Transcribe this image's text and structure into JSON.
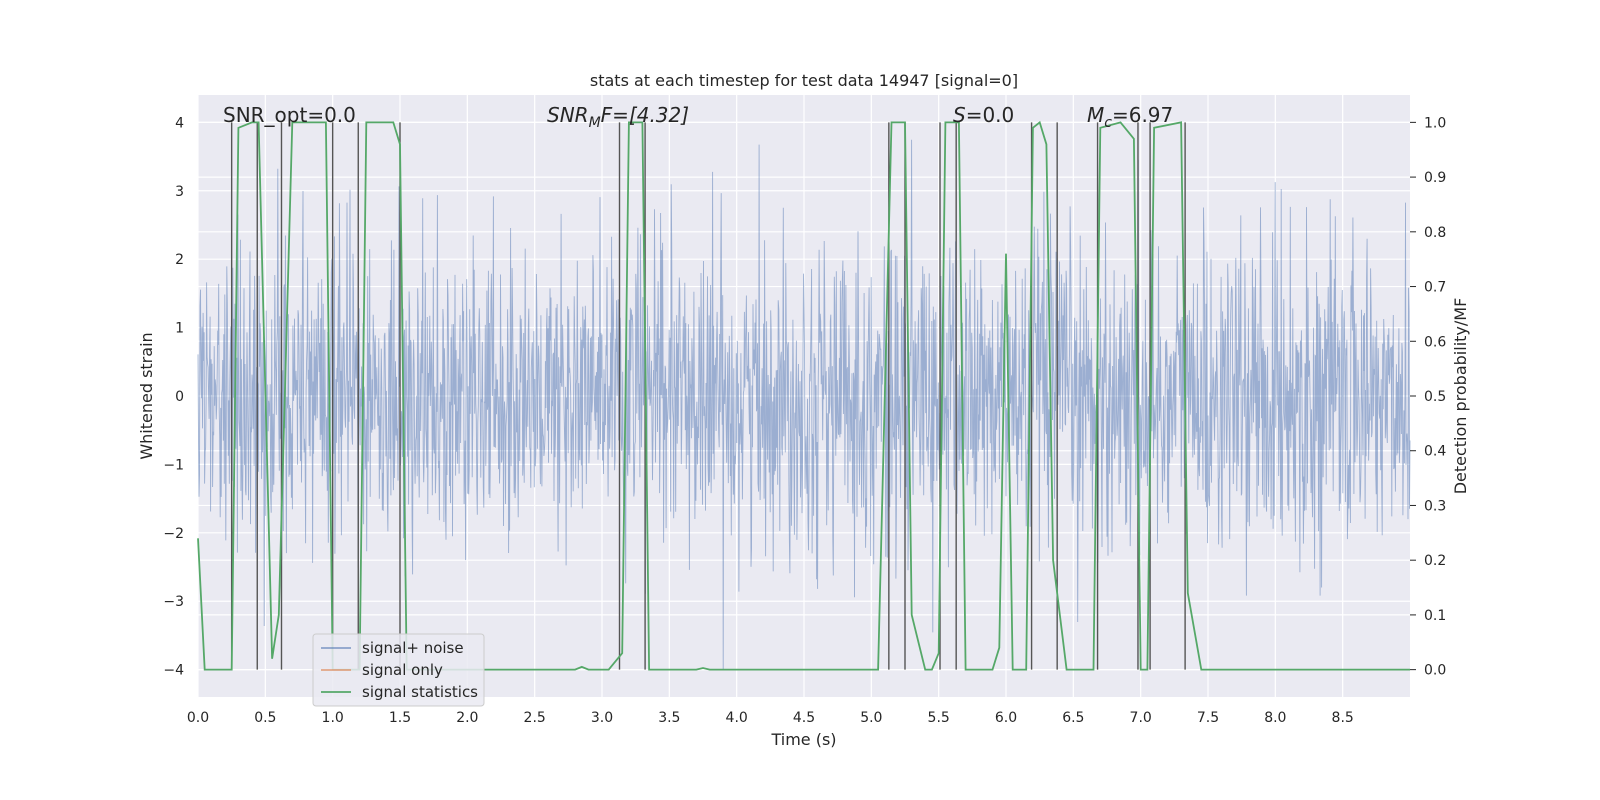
{
  "chart_data": {
    "type": "line",
    "title": "stats at each timestep for test data 14947 [signal=0]",
    "xlabel": "Time (s)",
    "ylabel_left": "Whitened strain",
    "ylabel_right": "Detection probability/MF",
    "xlim": [
      0.0,
      9.0
    ],
    "ylim_left": [
      -4.4,
      4.4
    ],
    "ylim_right": [
      -0.05,
      1.05
    ],
    "x_ticks": [
      0.0,
      0.5,
      1.0,
      1.5,
      2.0,
      2.5,
      3.0,
      3.5,
      4.0,
      4.5,
      5.0,
      5.5,
      6.0,
      6.5,
      7.0,
      7.5,
      8.0,
      8.5
    ],
    "x_tick_labels": [
      "0.0",
      "0.5",
      "1.0",
      "1.5",
      "2.0",
      "2.5",
      "3.0",
      "3.5",
      "4.0",
      "4.5",
      "5.0",
      "5.5",
      "6.0",
      "6.5",
      "7.0",
      "7.5",
      "8.0",
      "8.5"
    ],
    "y_left_ticks": [
      4,
      3,
      2,
      1,
      0,
      -1,
      -2,
      -3,
      -4
    ],
    "y_left_tick_labels": [
      "4",
      "3",
      "2",
      "1",
      "0",
      "−1",
      "−2",
      "−3",
      "−4"
    ],
    "y_right_ticks": [
      1.0,
      0.9,
      0.8,
      0.7,
      0.6,
      0.5,
      0.4,
      0.3,
      0.2,
      0.1,
      0.0
    ],
    "y_right_tick_labels": [
      "1.0",
      "0.9",
      "0.8",
      "0.7",
      "0.6",
      "0.5",
      "0.4",
      "0.3",
      "0.2",
      "0.1",
      "0.0"
    ],
    "grid": true,
    "legend_position": "bottom-left",
    "annotations": {
      "snr_opt": "SNR_opt=0.0",
      "snr_mf_base": "SNR",
      "snr_mf_sub": "M",
      "snr_mf_rest": "F=[4.32]",
      "s_italic": "S",
      "s_rest": "=0.0",
      "mc_base": "M",
      "mc_sub": "c",
      "mc_rest": "=6.97"
    },
    "series": [
      {
        "name": "signal+ noise",
        "axis": "left",
        "color": "#4c72b0",
        "description": "whitened Gaussian noise, amplitude mostly within ±1.6 with peaks near ±4"
      },
      {
        "name": "signal only",
        "axis": "left",
        "color": "#dd8452",
        "values": []
      },
      {
        "name": "signal statistics",
        "axis": "right",
        "color": "#55a868",
        "points": [
          [
            0.0,
            0.24
          ],
          [
            0.05,
            0.0
          ],
          [
            0.25,
            0.0
          ],
          [
            0.3,
            0.99
          ],
          [
            0.4,
            1.0
          ],
          [
            0.45,
            1.0
          ],
          [
            0.55,
            0.02
          ],
          [
            0.6,
            0.1
          ],
          [
            0.7,
            1.0
          ],
          [
            0.95,
            1.0
          ],
          [
            1.0,
            0.0
          ],
          [
            1.2,
            0.0
          ],
          [
            1.25,
            1.0
          ],
          [
            1.45,
            1.0
          ],
          [
            1.5,
            0.96
          ],
          [
            1.55,
            0.0
          ],
          [
            2.8,
            0.0
          ],
          [
            2.85,
            0.005
          ],
          [
            2.9,
            0.0
          ],
          [
            3.05,
            0.0
          ],
          [
            3.15,
            0.03
          ],
          [
            3.2,
            1.0
          ],
          [
            3.3,
            1.0
          ],
          [
            3.35,
            0.0
          ],
          [
            3.7,
            0.0
          ],
          [
            3.75,
            0.003
          ],
          [
            3.8,
            0.0
          ],
          [
            5.05,
            0.0
          ],
          [
            5.15,
            1.0
          ],
          [
            5.25,
            1.0
          ],
          [
            5.3,
            0.1
          ],
          [
            5.4,
            0.0
          ],
          [
            5.45,
            0.0
          ],
          [
            5.5,
            0.03
          ],
          [
            5.55,
            1.0
          ],
          [
            5.65,
            1.0
          ],
          [
            5.7,
            0.0
          ],
          [
            5.9,
            0.0
          ],
          [
            5.95,
            0.04
          ],
          [
            6.0,
            0.76
          ],
          [
            6.05,
            0.0
          ],
          [
            6.15,
            0.0
          ],
          [
            6.2,
            0.99
          ],
          [
            6.25,
            1.0
          ],
          [
            6.3,
            0.96
          ],
          [
            6.35,
            0.2
          ],
          [
            6.45,
            0.0
          ],
          [
            6.65,
            0.0
          ],
          [
            6.7,
            0.99
          ],
          [
            6.85,
            1.0
          ],
          [
            6.95,
            0.97
          ],
          [
            7.0,
            0.0
          ],
          [
            7.05,
            0.0
          ],
          [
            7.1,
            0.99
          ],
          [
            7.3,
            1.0
          ],
          [
            7.35,
            0.14
          ],
          [
            7.45,
            0.0
          ],
          [
            9.0,
            0.0
          ]
        ]
      }
    ],
    "vlines": [
      0.25,
      0.44,
      0.62,
      1.0,
      1.19,
      1.5,
      3.13,
      3.32,
      5.13,
      5.25,
      5.51,
      5.63,
      6.19,
      6.38,
      6.68,
      6.98,
      7.07,
      7.33
    ],
    "vline_color": "#555555"
  }
}
